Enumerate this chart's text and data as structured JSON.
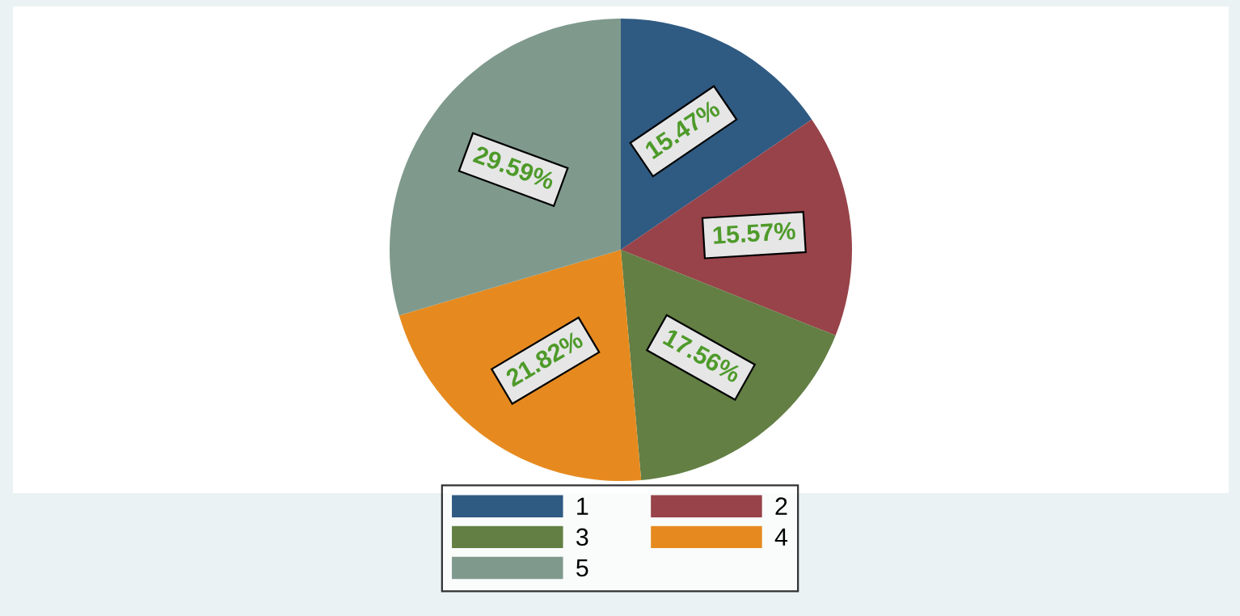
{
  "chart_data": {
    "type": "pie",
    "categories": [
      "1",
      "2",
      "3",
      "4",
      "5"
    ],
    "values": [
      15.47,
      15.57,
      17.56,
      21.82,
      29.59
    ],
    "value_labels": [
      "15.47%",
      "15.57%",
      "17.56%",
      "21.82%",
      "29.59%"
    ],
    "colors": [
      "#2f5a82",
      "#974349",
      "#637f44",
      "#e68a1f",
      "#7f9a8d"
    ],
    "legend": "bottom"
  }
}
